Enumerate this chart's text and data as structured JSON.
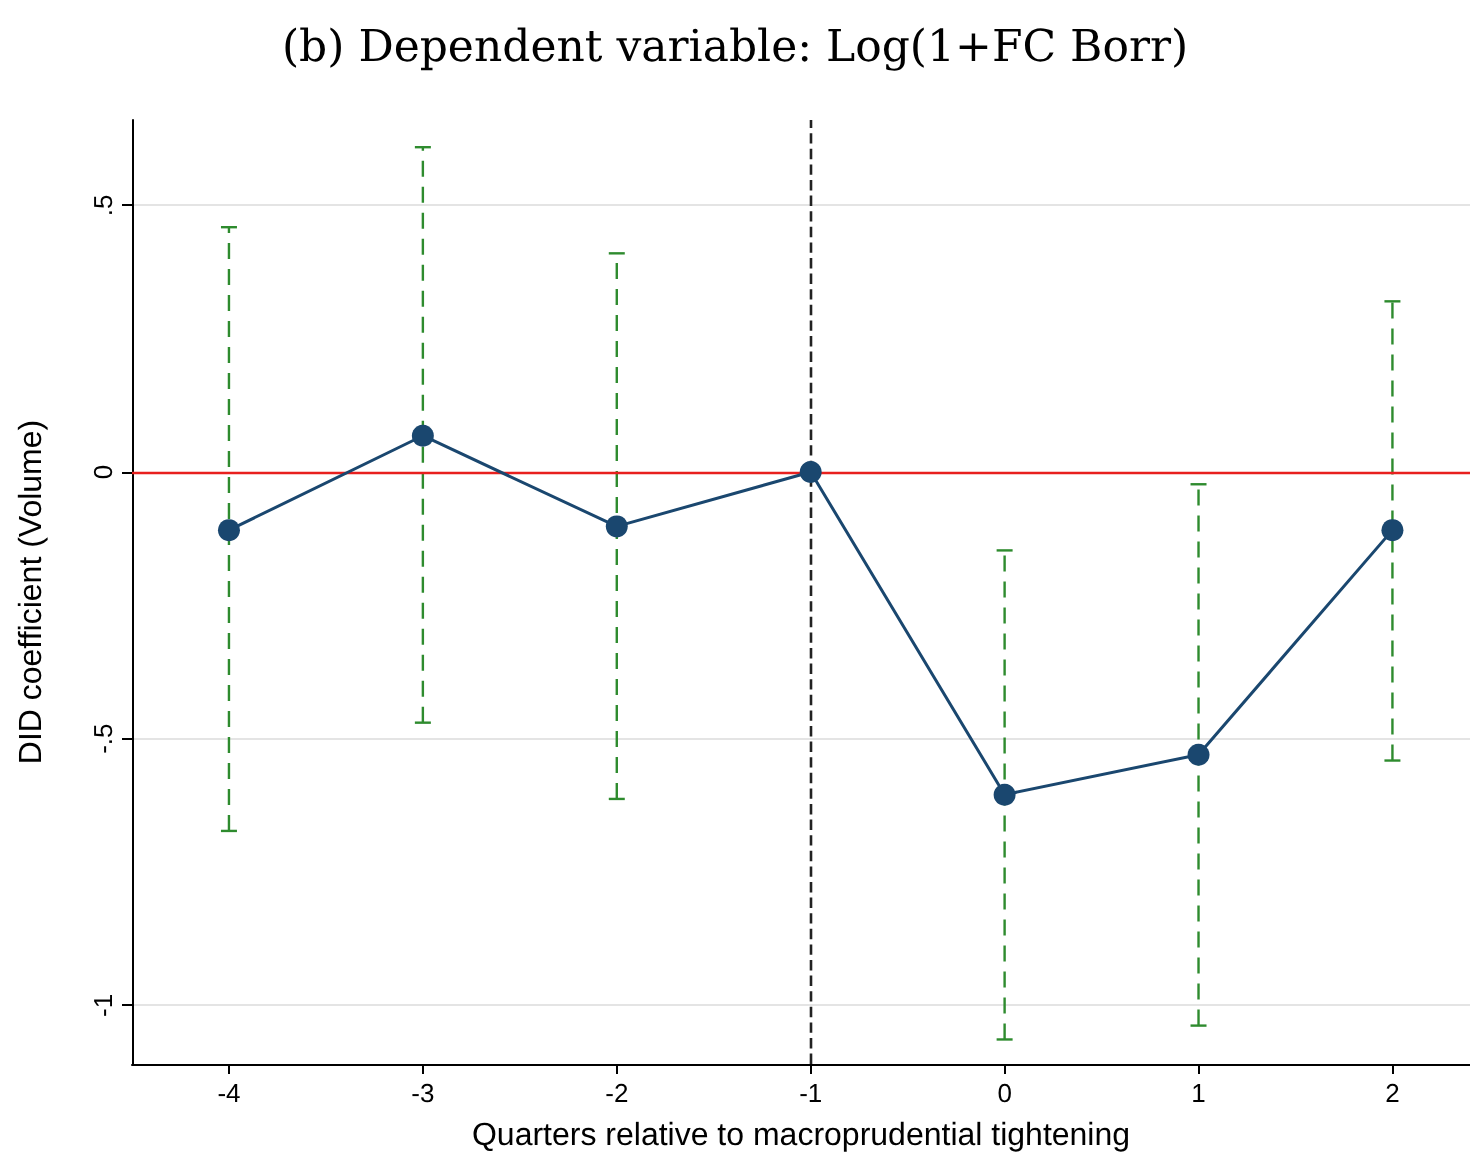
{
  "chart_data": {
    "type": "line",
    "title": "(b) Dependent variable: Log(1+FC Borr)",
    "xlabel": "Quarters relative to macroprudential tightening",
    "ylabel": "DID coefficient (Volume)",
    "x": [
      -4,
      -3,
      -2,
      -1,
      0,
      1,
      2
    ],
    "series": [
      {
        "color": "#1a476f",
        "values": [
          -0.109,
          0.068,
          -0.102,
          0,
          -0.605,
          -0.53,
          -0.109
        ],
        "errors": [
          [
            -0.673,
            0.459
          ],
          [
            -0.47,
            0.609
          ],
          [
            -0.613,
            0.41
          ],
          null,
          [
            -1.064,
            -0.147
          ],
          [
            -1.038,
            -0.023
          ],
          [
            -0.541,
            0.32
          ]
        ]
      }
    ],
    "xlim": [
      -4.5,
      2.4
    ],
    "xticks": [
      -4,
      -3,
      -2,
      -1,
      0,
      1,
      2
    ],
    "ylim": [
      -1.11,
      0.66
    ],
    "yticks": [
      {
        "value": 0.5,
        "label": ".5"
      },
      {
        "value": 0,
        "label": "0"
      },
      {
        "value": -0.5,
        "label": "-.5"
      },
      {
        "value": -1,
        "label": "-1"
      }
    ],
    "ref_lines": [
      {
        "axis": "y",
        "value": 0,
        "color": "#e8201e",
        "line_style": "solid"
      },
      {
        "axis": "x",
        "value": -1,
        "color": "#222222",
        "line_style": "dashed"
      }
    ],
    "grid": "y",
    "marker": "circle",
    "line_style": "solid"
  }
}
